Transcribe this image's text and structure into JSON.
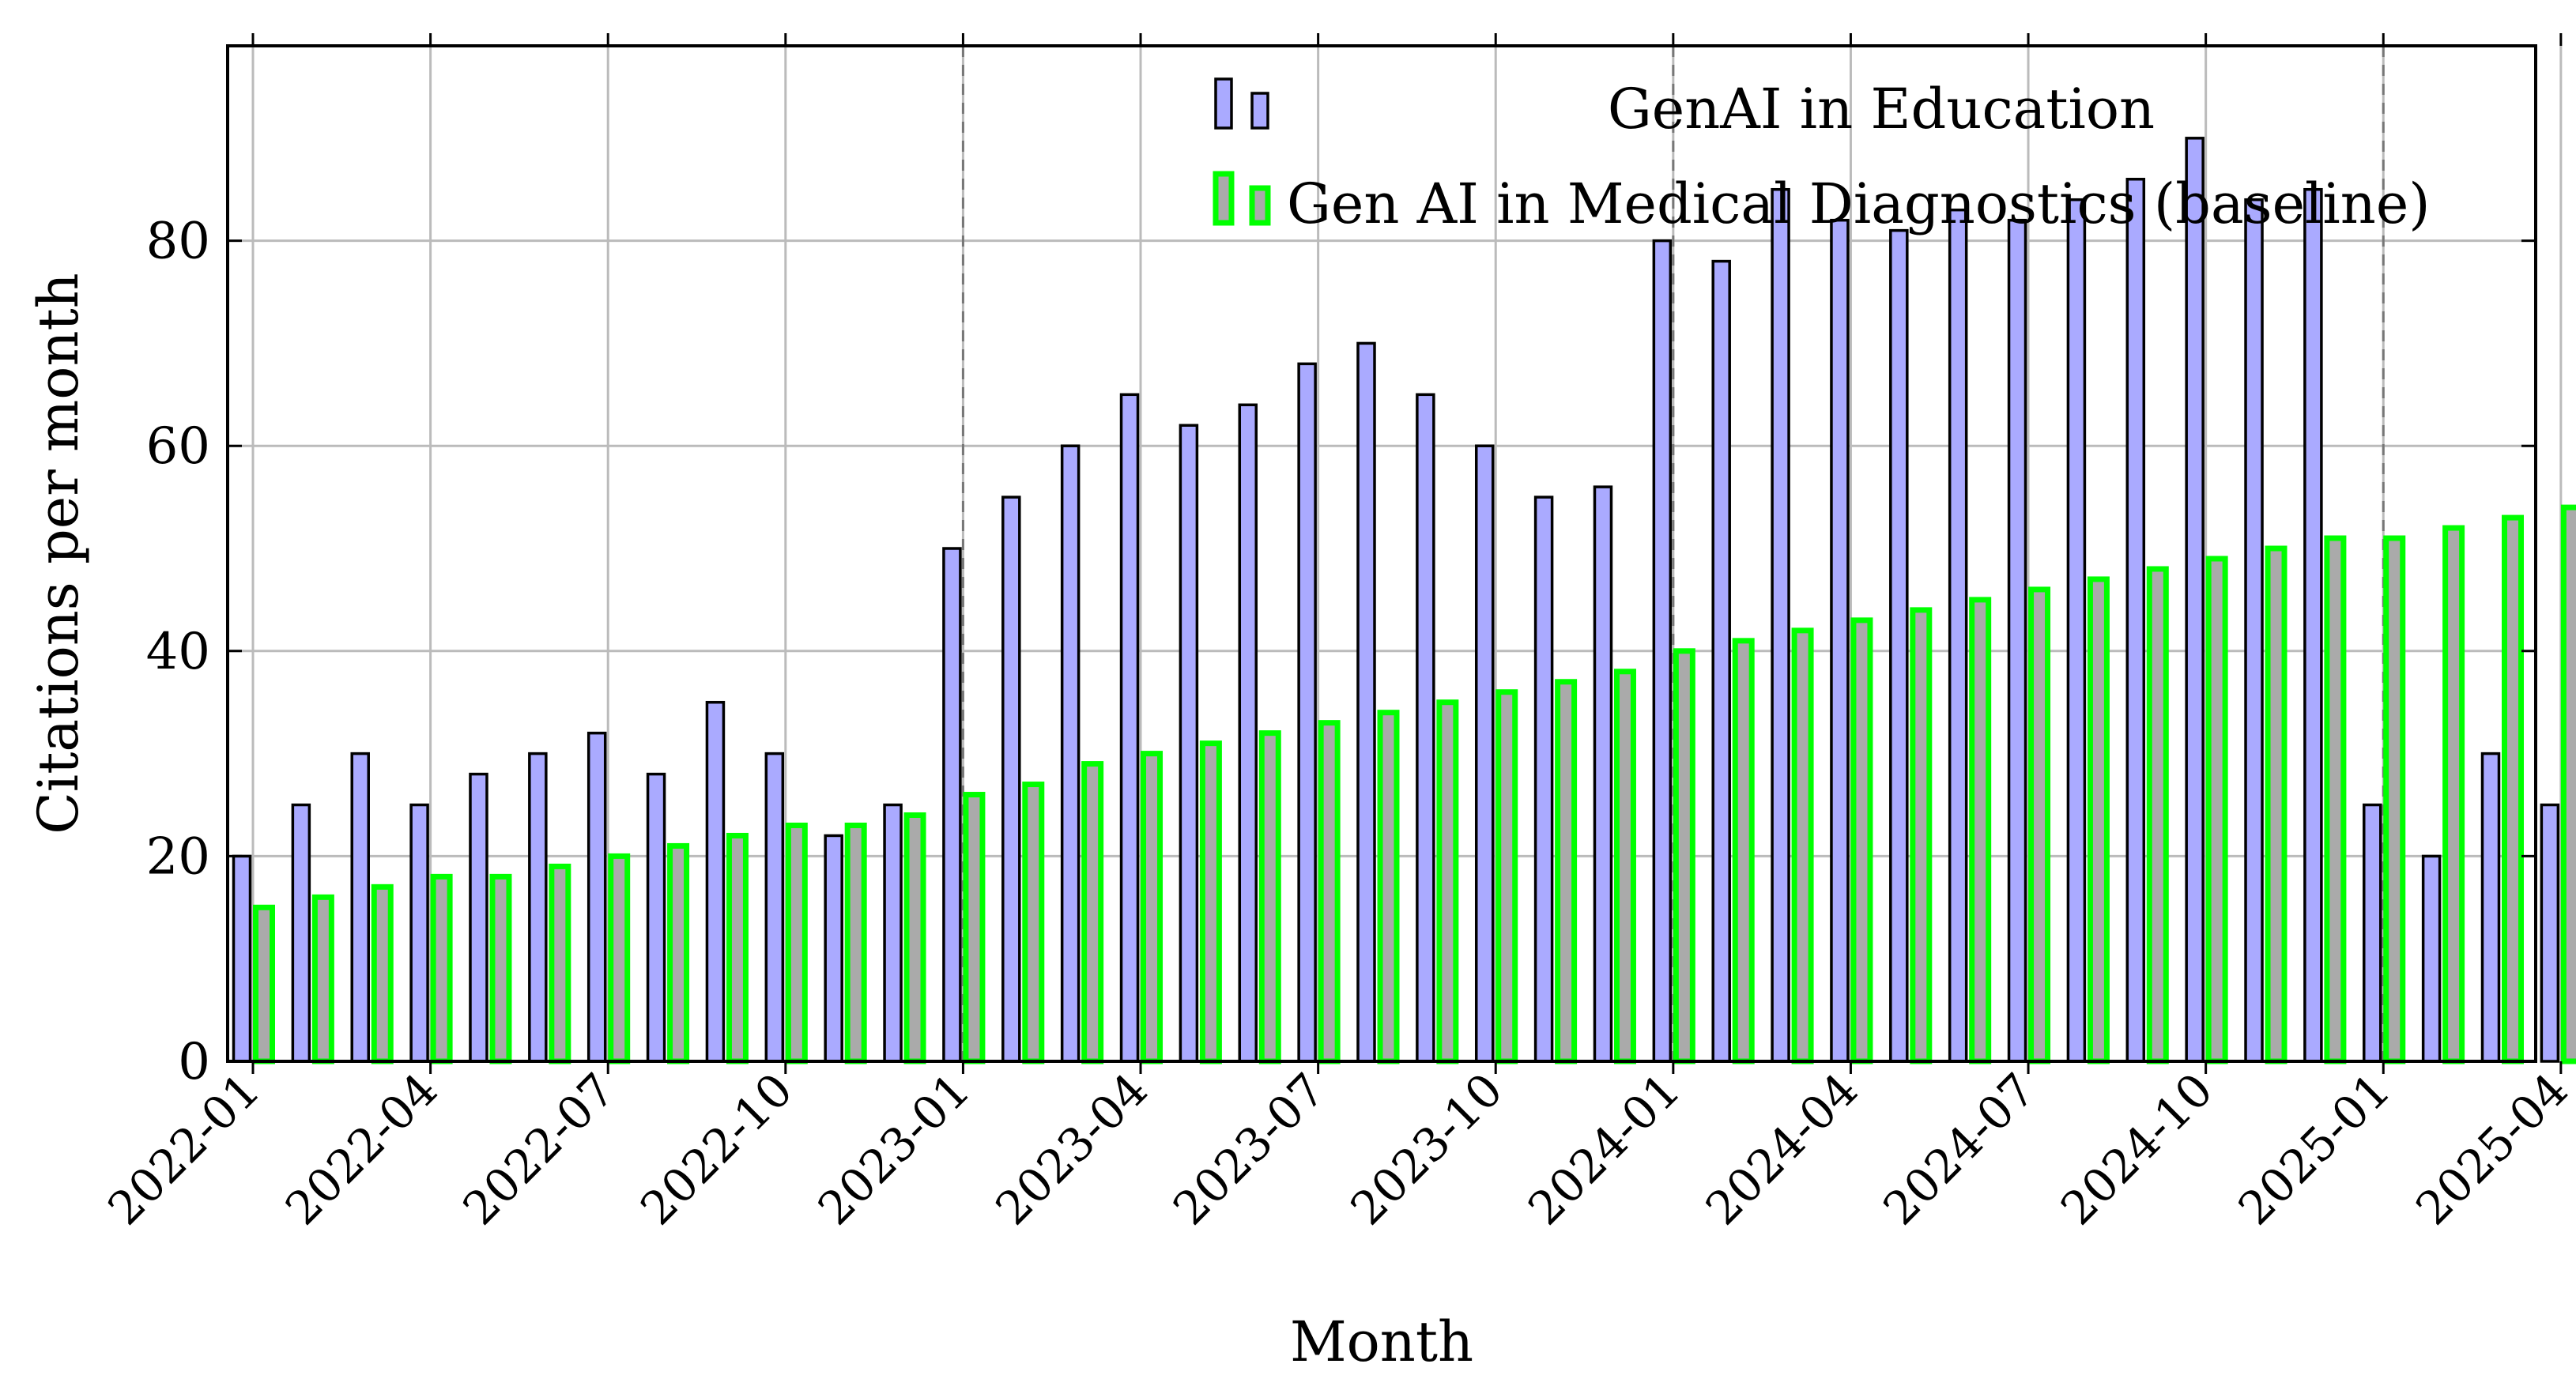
{
  "chart_data": {
    "type": "bar",
    "title": "",
    "xlabel": "Month",
    "ylabel": "Citations per month",
    "categories": [
      "2022-01",
      "2022-02",
      "2022-03",
      "2022-04",
      "2022-05",
      "2022-06",
      "2022-07",
      "2022-08",
      "2022-09",
      "2022-10",
      "2022-11",
      "2022-12",
      "2023-01",
      "2023-02",
      "2023-03",
      "2023-04",
      "2023-05",
      "2023-06",
      "2023-07",
      "2023-08",
      "2023-09",
      "2023-10",
      "2023-11",
      "2023-12",
      "2024-01",
      "2024-02",
      "2024-03",
      "2024-04",
      "2024-05",
      "2024-06",
      "2024-07",
      "2024-08",
      "2024-09",
      "2024-10",
      "2024-11",
      "2024-12",
      "2025-01",
      "2025-02",
      "2025-03",
      "2025-04"
    ],
    "x_tick_labels": [
      "2022-01",
      "2022-04",
      "2022-07",
      "2022-10",
      "2023-01",
      "2023-04",
      "2023-07",
      "2023-10",
      "2024-01",
      "2024-04",
      "2024-07",
      "2024-10",
      "2025-01",
      "2025-04"
    ],
    "y_ticks": [
      0,
      20,
      40,
      60,
      80
    ],
    "ylim": [
      0,
      99
    ],
    "grid": true,
    "legend_position": "top-right",
    "series": [
      {
        "name": "GenAI in Education",
        "color": "#aaaaff",
        "edge": "#000000",
        "values": [
          20,
          25,
          30,
          25,
          28,
          30,
          32,
          28,
          35,
          30,
          22,
          25,
          50,
          55,
          60,
          65,
          62,
          64,
          68,
          70,
          65,
          60,
          55,
          56,
          80,
          78,
          85,
          82,
          81,
          83,
          82,
          84,
          86,
          90,
          84,
          85,
          25,
          20,
          30,
          25
        ]
      },
      {
        "name": "Gen AI in Medical Diagnostics (baseline)",
        "color": "#aaaaaa",
        "edge": "#00ff00",
        "values": [
          15,
          16,
          17,
          18,
          18,
          19,
          20,
          21,
          22,
          23,
          23,
          24,
          26,
          27,
          29,
          30,
          31,
          32,
          33,
          34,
          35,
          36,
          37,
          38,
          40,
          41,
          42,
          43,
          44,
          45,
          46,
          47,
          48,
          49,
          50,
          51,
          51,
          52,
          53,
          54
        ]
      }
    ]
  }
}
